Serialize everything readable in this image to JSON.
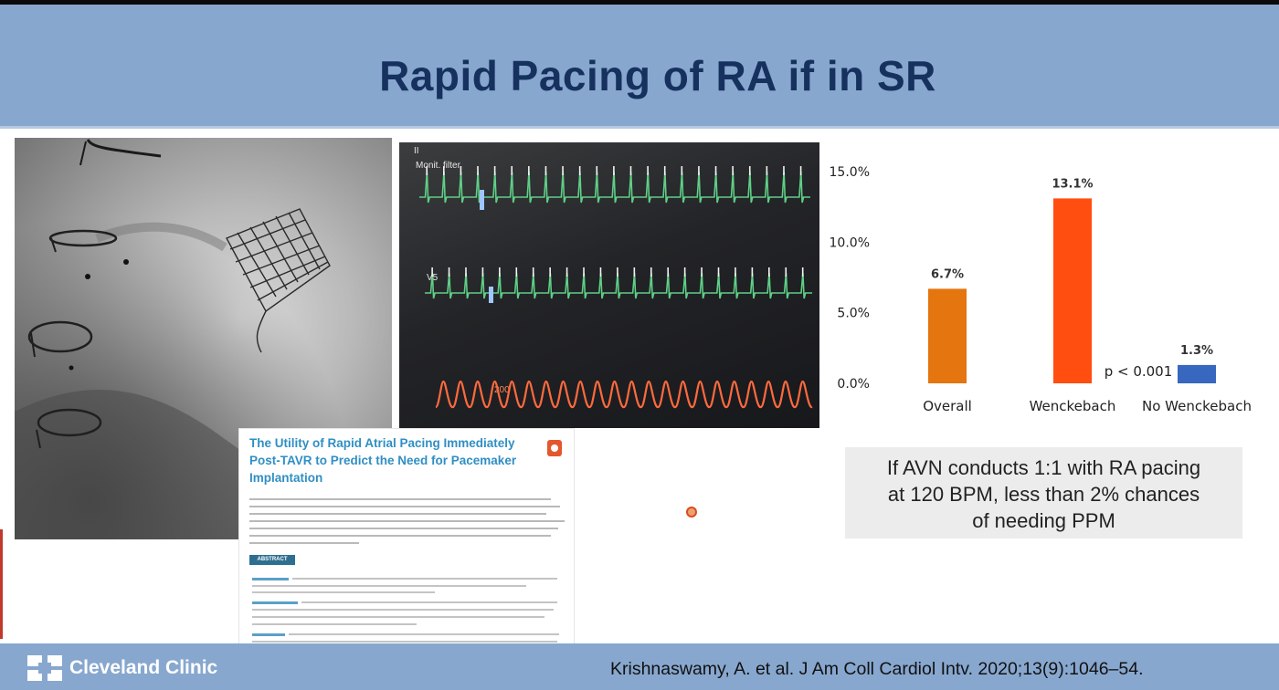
{
  "slide": {
    "title": "Rapid Pacing of RA if in SR"
  },
  "monitor": {
    "lead1": "II",
    "filter": "Monit. filter",
    "lead2": "V5",
    "art_scale": "200",
    "ecg_color": "#5fcf86",
    "pressure_color": "#ff6a3d"
  },
  "chart_data": {
    "type": "bar",
    "categories": [
      "Overall",
      "Wenckebach",
      "No Wenckebach"
    ],
    "values": [
      6.7,
      13.1,
      1.3
    ],
    "value_labels": [
      "6.7%",
      "13.1%",
      "1.3%"
    ],
    "colors": [
      "#e4750f",
      "#ff4e10",
      "#3767bf"
    ],
    "yticks": [
      "0.0%",
      "5.0%",
      "10.0%",
      "15.0%"
    ],
    "ylim": [
      0,
      15
    ],
    "annotation": "p < 0.001",
    "grid": false
  },
  "paper": {
    "title": "The Utility of Rapid Atrial Pacing Immediately Post-TAVR to Predict the Need for Pacemaker Implantation",
    "abstract_label": "ABSTRACT"
  },
  "note": {
    "line1": "If AVN conducts 1:1 with RA pacing",
    "line2": "at 120 BPM, less than 2% chances",
    "line3": "of needing PPM"
  },
  "footer": {
    "brand": "Cleveland Clinic",
    "citation": "Krishnaswamy, A. et al. J Am Coll Cardiol Intv. 2020;13(9):1046–54."
  }
}
